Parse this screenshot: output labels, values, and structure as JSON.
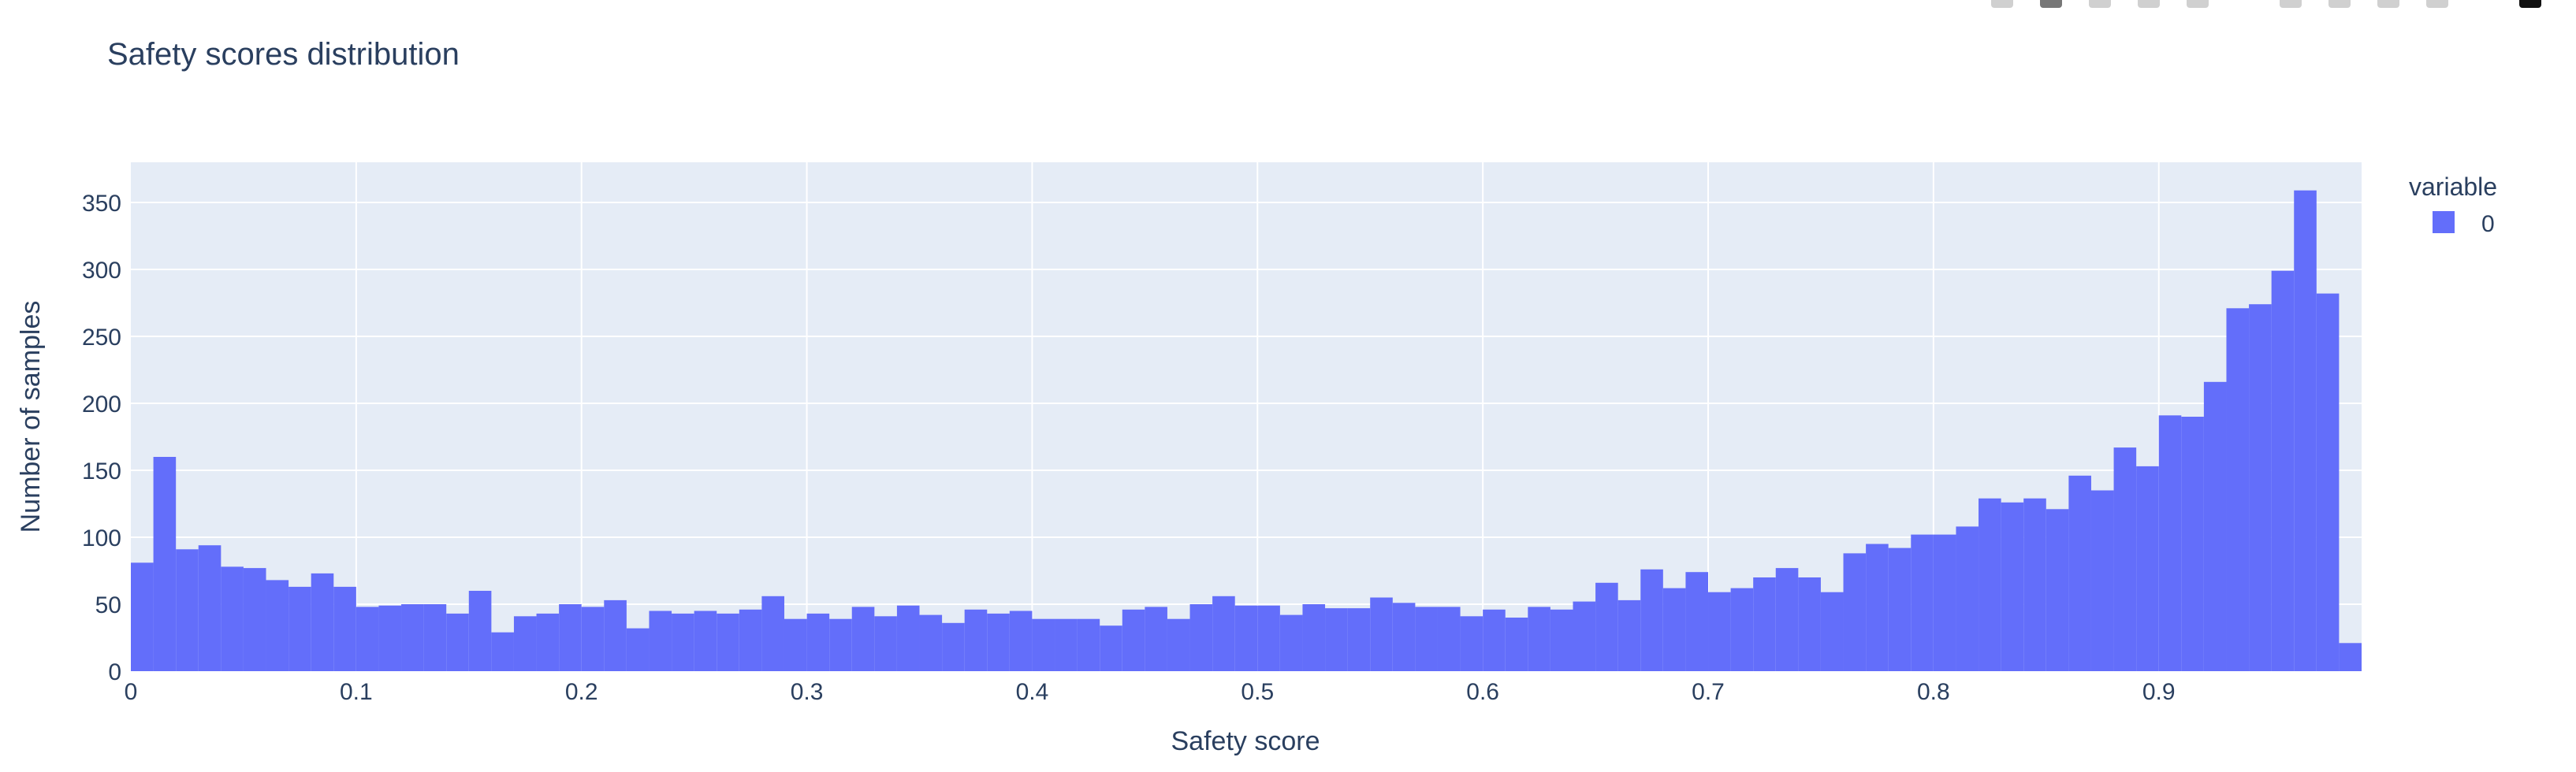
{
  "chart_data": {
    "type": "histogram",
    "title": "Safety scores distribution",
    "xlabel": "Safety score",
    "ylabel": "Number of samples",
    "xlim": [
      0,
      0.99
    ],
    "ylim": [
      0,
      380
    ],
    "xticks": [
      0,
      0.1,
      0.2,
      0.3,
      0.4,
      0.5,
      0.6,
      0.7,
      0.8,
      0.9
    ],
    "xtick_labels": [
      "0",
      "0.1",
      "0.2",
      "0.3",
      "0.4",
      "0.5",
      "0.6",
      "0.7",
      "0.8",
      "0.9"
    ],
    "yticks": [
      0,
      50,
      100,
      150,
      200,
      250,
      300,
      350
    ],
    "ytick_labels": [
      "0",
      "50",
      "100",
      "150",
      "200",
      "250",
      "300",
      "350"
    ],
    "bin_start": 0,
    "bin_width": 0.01,
    "grid": true,
    "legend": {
      "title": "variable",
      "placement": "right"
    },
    "series": [
      {
        "name": "0",
        "color": "#636efa",
        "values": [
          81,
          160,
          91,
          94,
          78,
          77,
          68,
          63,
          73,
          63,
          48,
          49,
          50,
          50,
          43,
          60,
          29,
          41,
          43,
          50,
          48,
          53,
          32,
          45,
          43,
          45,
          43,
          46,
          56,
          39,
          43,
          39,
          48,
          41,
          49,
          42,
          36,
          46,
          43,
          45,
          39,
          39,
          39,
          34,
          46,
          48,
          39,
          50,
          56,
          49,
          49,
          42,
          50,
          47,
          47,
          55,
          51,
          48,
          48,
          41,
          46,
          40,
          48,
          46,
          52,
          66,
          53,
          76,
          62,
          74,
          59,
          62,
          70,
          77,
          70,
          59,
          88,
          95,
          92,
          102,
          102,
          108,
          129,
          126,
          129,
          121,
          146,
          135,
          167,
          153,
          191,
          190,
          216,
          271,
          274,
          299,
          359,
          282,
          21
        ]
      }
    ]
  },
  "modebar": {
    "icons": [
      "camera-icon",
      "zoom-icon",
      "pan-icon",
      "box-select-icon",
      "lasso-icon",
      "zoom-in-icon",
      "zoom-out-icon",
      "autoscale-icon",
      "reset-axes-icon",
      "plotly-logo-icon"
    ]
  }
}
